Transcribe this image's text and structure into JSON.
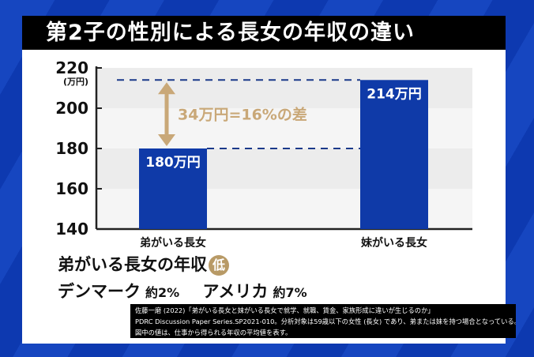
{
  "title": "第2子の性別による長女の年収の違い",
  "chart_data": {
    "type": "bar",
    "categories": [
      "弟がいる長女",
      "妹がいる長女"
    ],
    "values": [
      180,
      214
    ],
    "data_labels": [
      "180万円",
      "214万円"
    ],
    "unit_label": "(万円)",
    "yticks": [
      "140",
      "160",
      "180",
      "200",
      "220"
    ],
    "ylim": [
      140,
      220
    ],
    "annotation": "34万円=16%の差",
    "bar_color": "#0f3aa8",
    "annotation_color": "#c9a878",
    "grid": "alternating bands"
  },
  "summary": {
    "line1": "弟がいる長女の年収",
    "badge": "低",
    "country1": "デンマーク",
    "pct1": "約2%",
    "country2": "アメリカ",
    "pct2": "約7%"
  },
  "source": {
    "line1": "佐藤一磨 (2022)「弟がいる長女と妹がいる長女で就学、就職、賃金、家族形成に違いが生じるのか」",
    "line2": "PDRC Discussion Paper Series.SP2021-010。分析対象は59歳以下の女性 (長女) であり、弟または妹を持つ場合となっている。",
    "line3": "図中の値は、仕事から得られる年収の平均値を表す。"
  }
}
